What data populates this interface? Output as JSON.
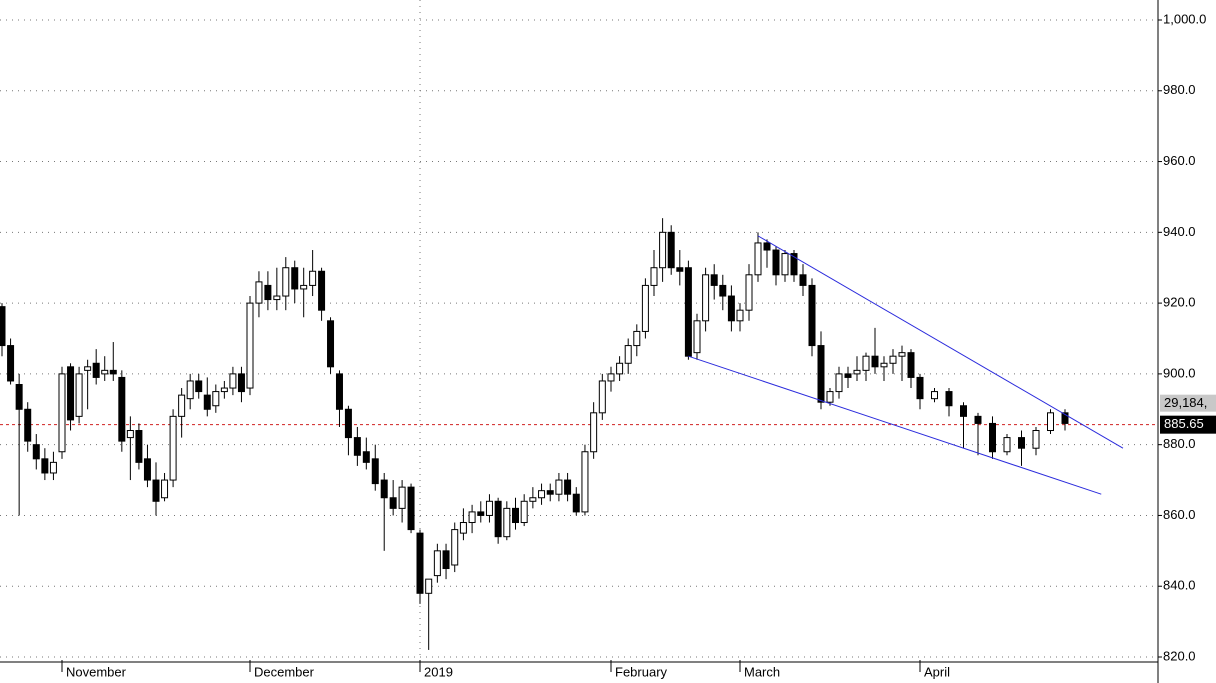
{
  "chart_data": {
    "type": "candlestick",
    "categories": [
      null,
      null,
      null,
      null,
      null,
      null,
      null,
      "November",
      null,
      null,
      null,
      null,
      null,
      null,
      null,
      null,
      null,
      null,
      null,
      null,
      null,
      null,
      null,
      null,
      null,
      null,
      null,
      null,
      null,
      "December",
      null,
      null,
      null,
      null,
      null,
      null,
      null,
      null,
      null,
      null,
      null,
      null,
      null,
      null,
      null,
      null,
      null,
      null,
      "2019",
      null,
      null,
      null,
      null,
      null,
      null,
      null,
      null,
      null,
      null,
      null,
      null,
      null,
      null,
      null,
      null,
      null,
      null,
      null,
      null,
      null,
      "February",
      null,
      null,
      null,
      null,
      null,
      null,
      null,
      null,
      null,
      null,
      null,
      null,
      null,
      null,
      "March",
      null,
      null,
      null,
      null,
      null,
      null,
      null,
      null,
      null,
      null,
      null,
      null,
      null,
      null,
      null,
      null,
      null,
      null,
      null,
      "April",
      null,
      null,
      null,
      null,
      null,
      null,
      null,
      null,
      null,
      null
    ],
    "open": [
      919,
      908,
      897,
      890,
      880,
      876,
      872,
      878,
      902,
      888,
      901,
      903,
      900,
      901,
      899,
      882,
      884,
      876,
      870,
      865,
      870,
      888,
      893,
      898,
      894,
      891,
      895,
      896,
      900,
      896,
      920,
      925,
      921,
      922,
      930,
      924,
      925,
      929,
      915,
      900,
      890,
      882,
      878,
      876,
      870,
      865,
      862,
      868,
      855,
      838,
      843,
      850,
      846,
      855,
      858,
      861,
      860,
      864,
      854,
      862,
      858,
      864,
      865,
      867,
      866,
      870,
      866,
      861,
      878,
      889,
      898,
      900,
      903,
      908,
      912,
      925,
      930,
      940,
      930,
      930,
      906,
      915,
      928,
      925,
      922,
      915,
      918,
      928,
      937,
      935,
      928,
      934,
      928,
      925,
      908,
      892,
      895,
      900,
      900,
      901,
      905,
      902,
      903,
      905,
      906,
      899,
      893,
      895,
      891,
      888,
      886,
      878,
      882,
      879,
      884,
      889
    ],
    "high": [
      920,
      910,
      900,
      892,
      883,
      879,
      878,
      902,
      903,
      902,
      904,
      907,
      905,
      909,
      901,
      888,
      886,
      880,
      875,
      872,
      890,
      896,
      900,
      900,
      899,
      897,
      898,
      902,
      902,
      922,
      929,
      929,
      930,
      933,
      932,
      930,
      935,
      930,
      916,
      901,
      891,
      885,
      882,
      880,
      872,
      870,
      870,
      869,
      856,
      842,
      852,
      852,
      858,
      862,
      863,
      864,
      866,
      865,
      864,
      865,
      866,
      868,
      869,
      869,
      872,
      872,
      868,
      880,
      892,
      900,
      902,
      905,
      910,
      914,
      927,
      935,
      944,
      942,
      935,
      932,
      917,
      930,
      931,
      928,
      925,
      920,
      931,
      940,
      938,
      936,
      935,
      935,
      931,
      927,
      912,
      896,
      902,
      902,
      905,
      906,
      913,
      905,
      907,
      908,
      907,
      900,
      896,
      896,
      892,
      889,
      888,
      883,
      884,
      885,
      890,
      890
    ],
    "low": [
      905,
      897,
      860,
      878,
      873,
      870,
      870,
      876,
      884,
      886,
      890,
      897,
      898,
      898,
      878,
      870,
      873,
      868,
      860,
      864,
      868,
      882,
      890,
      893,
      888,
      889,
      893,
      894,
      892,
      894,
      916,
      918,
      918,
      918,
      920,
      916,
      922,
      915,
      900,
      885,
      877,
      874,
      873,
      867,
      850,
      860,
      858,
      855,
      835,
      822,
      841,
      842,
      844,
      853,
      855,
      858,
      858,
      852,
      853,
      856,
      857,
      862,
      863,
      864,
      864,
      864,
      860,
      860,
      876,
      887,
      895,
      898,
      900,
      905,
      910,
      922,
      926,
      928,
      925,
      904,
      904,
      912,
      921,
      918,
      912,
      912,
      915,
      926,
      930,
      925,
      926,
      926,
      922,
      905,
      890,
      891,
      893,
      896,
      898,
      898,
      900,
      898,
      900,
      898,
      896,
      890,
      892,
      888,
      879,
      877,
      876,
      877,
      874,
      877,
      883,
      884
    ],
    "close": [
      908,
      898,
      890,
      881,
      876,
      872,
      875,
      900,
      887,
      900,
      902,
      899,
      901,
      900,
      881,
      884,
      875,
      870,
      864,
      870,
      888,
      894,
      898,
      895,
      890,
      895,
      896,
      900,
      895,
      920,
      926,
      921,
      922,
      930,
      924,
      925,
      929,
      918,
      902,
      890,
      882,
      877,
      875,
      869,
      865,
      862,
      868,
      856,
      838,
      842,
      850,
      845,
      856,
      858,
      861,
      860,
      864,
      854,
      862,
      858,
      864,
      865,
      867,
      866,
      870,
      866,
      861,
      878,
      889,
      898,
      900,
      903,
      908,
      912,
      925,
      930,
      940,
      930,
      929,
      905,
      915,
      928,
      925,
      922,
      915,
      918,
      928,
      937,
      935,
      928,
      934,
      928,
      925,
      908,
      892,
      895,
      900,
      899,
      901,
      905,
      902,
      903,
      905,
      906,
      899,
      893,
      895,
      891,
      888,
      886,
      878,
      882,
      879,
      884,
      889,
      886
    ],
    "up_color": "#ffffff",
    "down_color": "#000000",
    "ylim": [
      820,
      1000
    ],
    "yticks": [
      {
        "value": 820,
        "label": "820.0"
      },
      {
        "value": 840,
        "label": "840.0"
      },
      {
        "value": 860,
        "label": "860.0"
      },
      {
        "value": 880,
        "label": "880.0"
      },
      {
        "value": 900,
        "label": "900.0"
      },
      {
        "value": 920,
        "label": "920.0"
      },
      {
        "value": 940,
        "label": "940.0"
      },
      {
        "value": 960,
        "label": "960.0"
      },
      {
        "value": 980,
        "label": "980.0"
      },
      {
        "value": 1000,
        "label": "1,000.0"
      }
    ],
    "grid": true,
    "trendlines": [
      {
        "start": [
          87,
          939
        ],
        "end": [
          119,
          879
        ],
        "color": "#2b2bdc"
      },
      {
        "start": [
          79,
          905
        ],
        "end": [
          117.5,
          866
        ],
        "color": "#2b2bdc"
      }
    ],
    "last_price": {
      "value": 885.65,
      "label": "885.65",
      "color": "#d02020"
    },
    "volume_label": "29,184,"
  }
}
